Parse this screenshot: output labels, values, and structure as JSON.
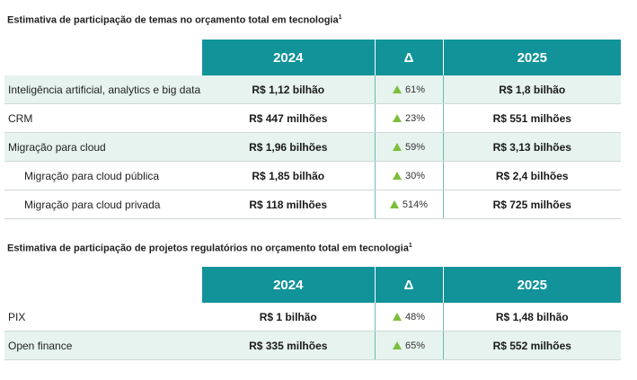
{
  "table1": {
    "title": "Estimativa de participação de temas no orçamento total em tecnologia",
    "footnote_mark": "1",
    "headers": {
      "y2024": "2024",
      "delta": "Δ",
      "y2025": "2025"
    },
    "rows": [
      {
        "label": "Inteligência artificial, analytics e big data",
        "v2024": "R$ 1,12 bilhão",
        "delta": "61%",
        "v2025": "R$ 1,8 bilhão"
      },
      {
        "label": "CRM",
        "v2024": "R$ 447 milhões",
        "delta": "23%",
        "v2025": "R$ 551 milhões"
      },
      {
        "label": "Migração para cloud",
        "v2024": "R$ 1,96 bilhões",
        "delta": "59%",
        "v2025": "R$ 3,13 bilhões"
      },
      {
        "label": "Migração para cloud pública",
        "v2024": "R$ 1,85 bilhão",
        "delta": "30%",
        "v2025": "R$ 2,4 bilhões"
      },
      {
        "label": "Migração para cloud privada",
        "v2024": "R$ 118 milhões",
        "delta": "514%",
        "v2025": "R$ 725 milhões"
      }
    ]
  },
  "table2": {
    "title": "Estimativa de participação de projetos regulatórios no orçamento total em tecnologia",
    "footnote_mark": "1",
    "headers": {
      "y2024": "2024",
      "delta": "Δ",
      "y2025": "2025"
    },
    "rows": [
      {
        "label": "PIX",
        "v2024": "R$ 1 bilhão",
        "delta": "48%",
        "v2025": "R$ 1,48 bilhão"
      },
      {
        "label": "Open finance",
        "v2024": "R$ 335 milhões",
        "delta": "65%",
        "v2025": "R$ 552 milhões"
      }
    ]
  },
  "colors": {
    "header": "#12939a",
    "shade": "#e6f3ee",
    "increase": "#7bbf3a"
  },
  "icons": {
    "increase": "up-triangle-icon"
  }
}
